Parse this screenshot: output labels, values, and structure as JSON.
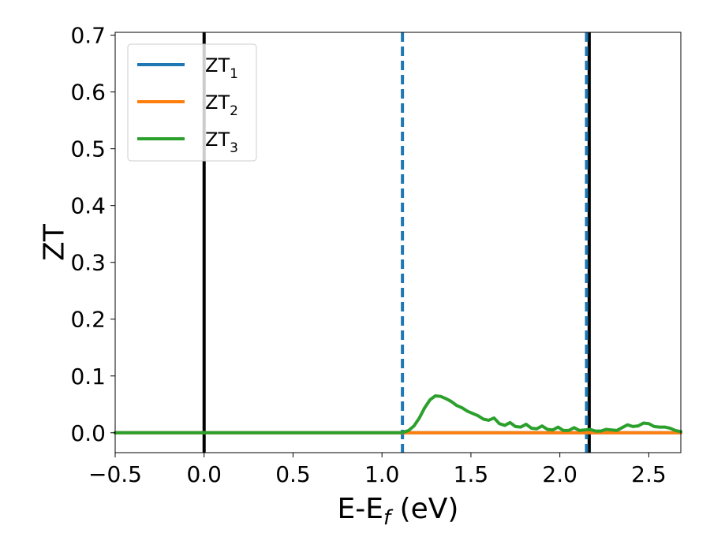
{
  "chart_data": {
    "type": "line",
    "xlabel": "E-E",
    "xlabel_sub": "f",
    "xlabel_unit": " (eV)",
    "ylabel": "ZT",
    "xlim": [
      -0.5,
      2.68
    ],
    "ylim": [
      -0.035,
      0.705
    ],
    "xticks": [
      -0.5,
      0.0,
      0.5,
      1.0,
      1.5,
      2.0,
      2.5
    ],
    "xtick_labels": [
      "−0.5",
      "0.0",
      "0.5",
      "1.0",
      "1.5",
      "2.0",
      "2.5"
    ],
    "yticks": [
      0.0,
      0.1,
      0.2,
      0.3,
      0.4,
      0.5,
      0.6,
      0.7
    ],
    "ytick_labels": [
      "0.0",
      "0.1",
      "0.2",
      "0.3",
      "0.4",
      "0.5",
      "0.6",
      "0.7"
    ],
    "grid": false,
    "legend_position": "top-left",
    "series": [
      {
        "name": "ZT",
        "sub": "1",
        "color": "#1f77b4",
        "x": [
          -0.5,
          1.1,
          2.68
        ],
        "y": [
          0,
          0,
          0
        ]
      },
      {
        "name": "ZT",
        "sub": "2",
        "color": "#ff7f0e",
        "x": [
          -0.5,
          1.1,
          2.68
        ],
        "y": [
          0,
          0,
          0
        ]
      },
      {
        "name": "ZT",
        "sub": "3",
        "color": "#2ca02c",
        "x": [
          -0.5,
          1.1,
          1.12,
          1.15,
          1.18,
          1.21,
          1.24,
          1.27,
          1.3,
          1.33,
          1.36,
          1.39,
          1.42,
          1.45,
          1.48,
          1.51,
          1.54,
          1.57,
          1.6,
          1.63,
          1.66,
          1.69,
          1.72,
          1.75,
          1.78,
          1.81,
          1.84,
          1.87,
          1.9,
          1.93,
          1.96,
          1.99,
          2.02,
          2.05,
          2.08,
          2.11,
          2.14,
          2.17,
          2.2,
          2.23,
          2.26,
          2.29,
          2.32,
          2.35,
          2.38,
          2.41,
          2.44,
          2.47,
          2.5,
          2.53,
          2.56,
          2.59,
          2.62,
          2.65,
          2.68
        ],
        "y": [
          0,
          0,
          0.001,
          0.004,
          0.012,
          0.026,
          0.044,
          0.058,
          0.065,
          0.064,
          0.06,
          0.055,
          0.048,
          0.044,
          0.038,
          0.034,
          0.03,
          0.024,
          0.022,
          0.026,
          0.016,
          0.013,
          0.018,
          0.011,
          0.01,
          0.015,
          0.008,
          0.007,
          0.012,
          0.006,
          0.005,
          0.01,
          0.004,
          0.004,
          0.009,
          0.004,
          0.005,
          0.006,
          0.003,
          0.003,
          0.006,
          0.005,
          0.004,
          0.009,
          0.014,
          0.011,
          0.012,
          0.017,
          0.016,
          0.011,
          0.01,
          0.01,
          0.008,
          0.004,
          0.002
        ]
      }
    ],
    "vlines": [
      {
        "x": 0.0,
        "style": "solid",
        "color": "#000000"
      },
      {
        "x": 2.165,
        "style": "solid",
        "color": "#000000"
      },
      {
        "x": 1.115,
        "style": "dashed",
        "color": "#1f77b4"
      },
      {
        "x": 2.15,
        "style": "dashed",
        "color": "#1f77b4"
      }
    ]
  }
}
